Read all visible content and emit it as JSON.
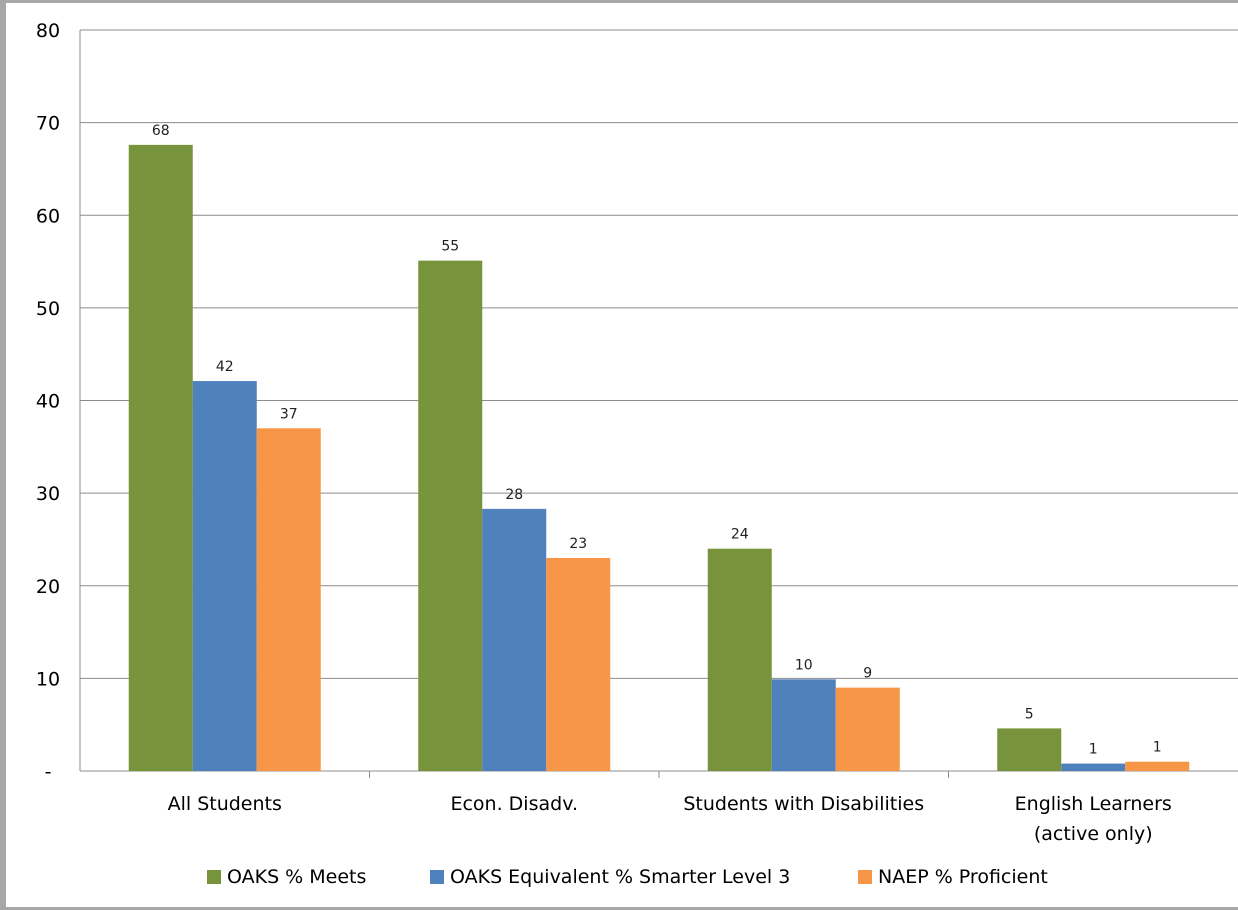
{
  "chart_data": {
    "type": "bar",
    "title": "",
    "xlabel": "",
    "ylabel": "",
    "ylim": [
      0,
      80
    ],
    "yticks": [
      "-",
      "10",
      "20",
      "30",
      "40",
      "50",
      "60",
      "70",
      "80"
    ],
    "grid": true,
    "legend_position": "bottom",
    "categories": [
      [
        "All Students"
      ],
      [
        "Econ. Disadv."
      ],
      [
        "Students with Disabilities"
      ],
      [
        "English Learners",
        "(active only)"
      ]
    ],
    "series": [
      {
        "name": "OAKS % Meets",
        "color": "#77933c",
        "values": [
          67.6,
          55.1,
          24.0,
          4.6
        ],
        "labels": [
          "68",
          "55",
          "24",
          "5"
        ]
      },
      {
        "name": "OAKS Equivalent % Smarter Level 3",
        "color": "#4f81bd",
        "values": [
          42.1,
          28.3,
          9.9,
          0.8
        ],
        "labels": [
          "42",
          "28",
          "10",
          "1"
        ]
      },
      {
        "name": "NAEP % Proficient",
        "color": "#f79646",
        "values": [
          37.0,
          23.0,
          9.0,
          1.0
        ],
        "labels": [
          "37",
          "23",
          "9",
          "1"
        ]
      }
    ]
  }
}
